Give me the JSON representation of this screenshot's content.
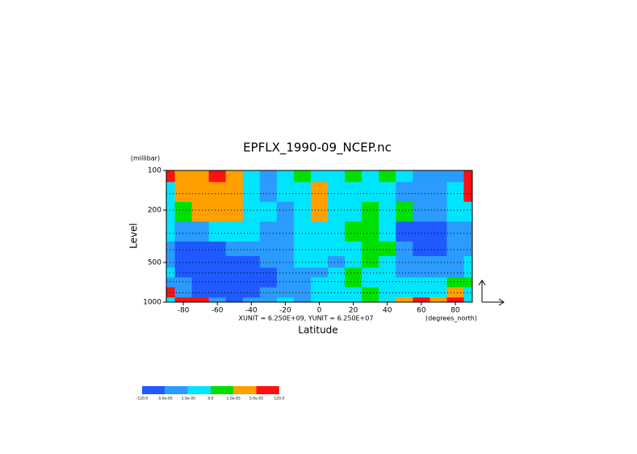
{
  "chart_data": {
    "type": "contour",
    "title": "EPFLX_1990-09_NCEP.nc",
    "y_unit_label": "(millibar)",
    "ylabel": "Level",
    "xlabel": "Latitude",
    "x_unit_label": "(degrees_north)",
    "vector_units": "XUNIT = 6.250E+09, YUNIT = 6.250E+07",
    "xlim": [
      -90,
      90
    ],
    "xticks": [
      -80,
      -60,
      -40,
      -20,
      0,
      20,
      40,
      60,
      80
    ],
    "ylim": [
      100,
      1000
    ],
    "yticks": [
      100,
      200,
      500,
      1000
    ],
    "y_log": true,
    "y_inverted": true,
    "x": [
      -90,
      -80,
      -70,
      -60,
      -50,
      -40,
      -30,
      -20,
      -10,
      0,
      10,
      20,
      30,
      40,
      50,
      60,
      70,
      80,
      90
    ],
    "levels_y": [
      100,
      150,
      200,
      300,
      400,
      500,
      600,
      700,
      850,
      1000
    ],
    "z": [
      [
        8e-05,
        3e-05,
        3e-05,
        8e-05,
        3e-05,
        -5e-06,
        -3e-05,
        -5e-06,
        5e-06,
        -5e-06,
        -5e-06,
        5e-06,
        -5e-06,
        5e-06,
        -5e-06,
        -3e-05,
        -3e-05,
        -3e-05,
        8e-05
      ],
      [
        -5e-06,
        3e-05,
        3e-05,
        3e-05,
        3e-05,
        -5e-06,
        -3e-05,
        -5e-06,
        -5e-06,
        3e-05,
        -5e-06,
        -5e-06,
        -5e-06,
        -5e-06,
        -3e-05,
        -3e-05,
        -3e-05,
        -5e-06,
        8e-05
      ],
      [
        -5e-06,
        5e-06,
        3e-05,
        3e-05,
        3e-05,
        -5e-06,
        -5e-06,
        -3e-05,
        -5e-06,
        3e-05,
        -5e-06,
        -5e-06,
        5e-06,
        -5e-06,
        5e-06,
        -3e-05,
        -3e-05,
        -5e-06,
        -5e-06
      ],
      [
        -5e-06,
        -3e-05,
        -3e-05,
        -5e-06,
        -5e-06,
        -5e-06,
        -3e-05,
        -3e-05,
        -5e-06,
        -5e-06,
        -5e-06,
        5e-06,
        5e-06,
        -5e-06,
        -8e-05,
        -8e-05,
        -8e-05,
        -3e-05,
        -3e-05
      ],
      [
        -3e-05,
        -8e-05,
        -8e-05,
        -8e-05,
        -3e-05,
        -3e-05,
        -3e-05,
        -3e-05,
        -5e-06,
        -5e-06,
        -5e-06,
        -5e-06,
        5e-06,
        5e-06,
        -3e-05,
        -8e-05,
        -8e-05,
        -3e-05,
        -3e-05
      ],
      [
        -3e-05,
        -8e-05,
        -8e-05,
        -8e-05,
        -8e-05,
        -8e-05,
        -3e-05,
        -3e-05,
        -5e-06,
        -5e-06,
        -3e-05,
        -5e-06,
        5e-06,
        -5e-06,
        -3e-05,
        -3e-05,
        -3e-05,
        -3e-05,
        -5e-06
      ],
      [
        -5e-06,
        -8e-05,
        -8e-05,
        -8e-05,
        -8e-05,
        -8e-05,
        -8e-05,
        -3e-05,
        -3e-05,
        -3e-05,
        -5e-06,
        5e-06,
        -5e-06,
        -5e-06,
        -3e-05,
        -3e-05,
        -3e-05,
        -3e-05,
        -5e-06
      ],
      [
        -3e-05,
        -3e-05,
        -8e-05,
        -8e-05,
        -8e-05,
        -8e-05,
        -8e-05,
        -3e-05,
        -3e-05,
        -5e-06,
        -5e-06,
        5e-06,
        -5e-06,
        -5e-06,
        -5e-06,
        -5e-06,
        -5e-06,
        5e-06,
        5e-06
      ],
      [
        8e-05,
        -3e-05,
        -8e-05,
        -8e-05,
        -8e-05,
        -8e-05,
        -3e-05,
        -3e-05,
        -3e-05,
        -5e-06,
        -5e-06,
        -5e-06,
        5e-06,
        -5e-06,
        -5e-06,
        -5e-06,
        -5e-06,
        3e-05,
        -5e-06
      ],
      [
        -5e-06,
        8e-05,
        8e-05,
        -3e-05,
        -8e-05,
        -3e-05,
        -3e-05,
        -5e-06,
        -3e-05,
        -5e-06,
        -5e-06,
        -5e-06,
        5e-06,
        -5e-06,
        3e-05,
        8e-05,
        3e-05,
        8e-05,
        -5e-06
      ]
    ],
    "colorbar_ticks": [
      {
        "value": -120,
        "label": "-120.0"
      },
      {
        "value": -5e-05,
        "label": "-5.0e-05"
      },
      {
        "value": -1e-05,
        "label": "-1.0e-05"
      },
      {
        "value": 0,
        "label": "0.0"
      },
      {
        "value": 1e-05,
        "label": "1.0e-05"
      },
      {
        "value": 5e-05,
        "label": "5.0e-05"
      },
      {
        "value": 120,
        "label": "120.0"
      }
    ],
    "colors": [
      "#1e5aff",
      "#2b9bff",
      "#00e5ff",
      "#00e000",
      "#ffa000",
      "#ff1010"
    ],
    "level_lines": true
  }
}
